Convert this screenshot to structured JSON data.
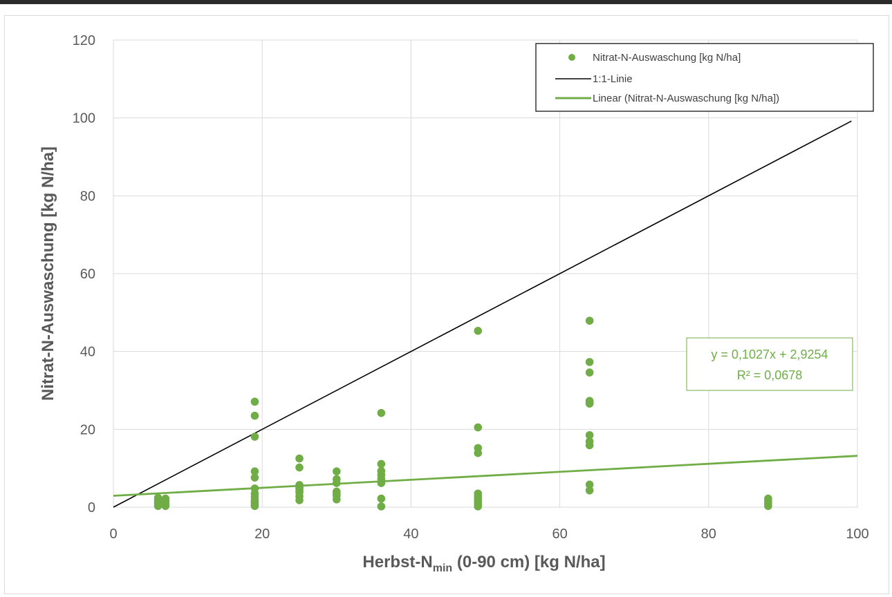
{
  "chart_data": {
    "type": "scatter",
    "title": "",
    "xlabel_main": "Herbst-N",
    "xlabel_sub": "min",
    "xlabel_rest": " (0-90 cm) [kg N/ha]",
    "ylabel": "Nitrat-N-Auswaschung [kg N/ha]",
    "xlim": [
      0,
      100
    ],
    "ylim": [
      0,
      120
    ],
    "xticks": [
      "0",
      "20",
      "40",
      "60",
      "80",
      "100"
    ],
    "yticks": [
      "0",
      "20",
      "40",
      "60",
      "80",
      "100",
      "120"
    ],
    "grid": true,
    "legend_position": "top-right",
    "legend": {
      "scatter": "Nitrat-N-Auswaschung [kg N/ha]",
      "identity": "1:1-Linie",
      "trend": "Linear (Nitrat-N-Auswaschung [kg N/ha])"
    },
    "colors": {
      "scatter": "#70ad47",
      "identity": "#000000",
      "trend": "#70ad47",
      "grid": "#d9d9d9"
    },
    "series": [
      {
        "name": "Nitrat-N-Auswaschung [kg N/ha]",
        "kind": "scatter",
        "x": [
          6,
          6,
          6,
          6,
          6,
          7,
          7,
          7,
          7,
          19,
          19,
          19,
          19,
          19,
          19,
          19,
          19,
          19,
          19,
          19,
          19,
          19,
          25,
          25,
          25,
          25,
          25,
          25,
          25,
          25,
          25,
          30,
          30,
          30,
          30,
          30,
          30,
          30,
          36,
          36,
          36,
          36,
          36,
          36,
          36,
          36,
          49,
          49,
          49,
          49,
          49,
          49,
          49,
          49,
          49,
          49,
          64,
          64,
          64,
          64,
          64,
          64,
          64,
          64,
          64,
          64,
          64,
          88,
          88,
          88,
          88
        ],
        "y": [
          0.3,
          0.8,
          1.3,
          1.8,
          2.4,
          0.3,
          0.8,
          1.5,
          2.2,
          0.3,
          1.0,
          1.8,
          2.7,
          3.5,
          4.8,
          7.6,
          9.2,
          18.1,
          23.5,
          27.1,
          0.6,
          1.4,
          1.8,
          2.8,
          3.8,
          4.8,
          5.7,
          10.2,
          12.5,
          4.3,
          5.2,
          2.0,
          3.0,
          4.0,
          6.2,
          7.2,
          9.2,
          3.5,
          0.2,
          2.2,
          6.2,
          7.3,
          8.3,
          9.3,
          11.1,
          24.2,
          0.2,
          0.8,
          1.5,
          2.1,
          2.8,
          3.5,
          13.9,
          15.2,
          20.5,
          45.3,
          4.3,
          5.8,
          15.9,
          16.9,
          18.5,
          26.6,
          27.3,
          34.6,
          37.3,
          47.9,
          26.9,
          0.3,
          0.9,
          1.5,
          2.2
        ]
      },
      {
        "name": "1:1-Linie",
        "kind": "line",
        "x": [
          0,
          99.2
        ],
        "y": [
          0,
          99.2
        ]
      },
      {
        "name": "Linear (Nitrat-N-Auswaschung [kg N/ha])",
        "kind": "trendline",
        "x": [
          0,
          100
        ],
        "y": [
          2.9254,
          13.1954
        ]
      }
    ],
    "annotation": {
      "line1": "y = 0,1027x + 2,9254",
      "line2": "R² = 0,0678"
    }
  }
}
